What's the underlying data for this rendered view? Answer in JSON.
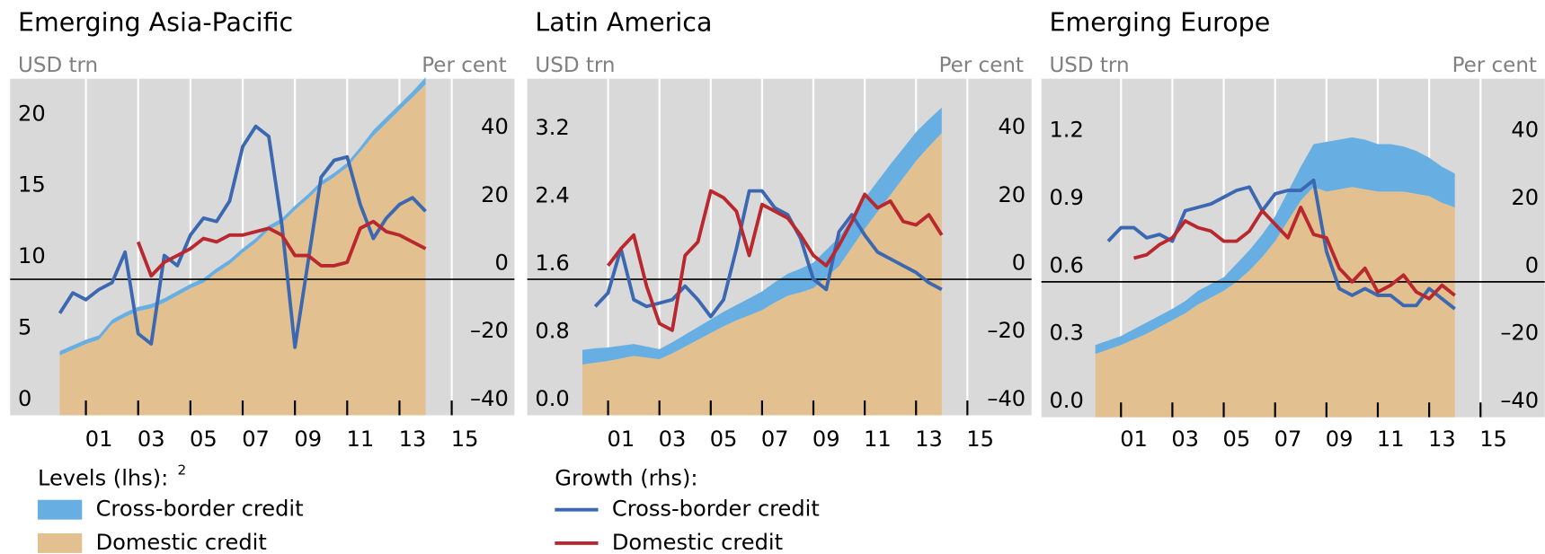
{
  "chart_data": [
    {
      "type": "combo",
      "title": "Emerging Asia-Pacific",
      "y_label": "USD trn",
      "y2_label": "Per cent",
      "x": [
        2000,
        2000.5,
        2001,
        2001.5,
        2002,
        2002.5,
        2003,
        2003.5,
        2004,
        2004.5,
        2005,
        2005.5,
        2006,
        2006.5,
        2007,
        2007.5,
        2008,
        2008.5,
        2009,
        2009.5,
        2010,
        2010.5,
        2011,
        2011.5,
        2012,
        2012.5,
        2013,
        2013.5,
        2014
      ],
      "xlim": [
        1998.1,
        2017.4
      ],
      "xticks": [
        {
          "value": 2001,
          "label": "01"
        },
        {
          "value": 2003,
          "label": "03"
        },
        {
          "value": 2005,
          "label": "05"
        },
        {
          "value": 2007,
          "label": "07"
        },
        {
          "value": 2009,
          "label": "09"
        },
        {
          "value": 2011,
          "label": "11"
        },
        {
          "value": 2013,
          "label": "13"
        },
        {
          "value": 2015,
          "label": "15"
        }
      ],
      "ylim": [
        0,
        23.6
      ],
      "yticks": [
        0,
        5,
        10,
        15,
        20
      ],
      "y2lim": [
        -40,
        59
      ],
      "y2ticks": [
        {
          "value": -40,
          "label": "–40"
        },
        {
          "value": -20,
          "label": "–20"
        },
        0,
        20,
        40
      ],
      "grid": true,
      "series": [
        {
          "name": "Domestic credit",
          "type": "area",
          "color": "#e2c08f",
          "values": [
            4.2,
            4.6,
            5.0,
            5.3,
            6.4,
            6.9,
            7.3,
            7.5,
            7.9,
            8.4,
            8.9,
            9.3,
            10.0,
            10.6,
            11.4,
            12.1,
            13.0,
            13.5,
            14.4,
            15.2,
            16.1,
            16.7,
            17.4,
            18.5,
            19.6,
            20.5,
            21.4,
            22.3,
            23.2
          ]
        },
        {
          "name": "Cross-border credit",
          "type": "band",
          "color": "#67aee3",
          "values": [
            0.3,
            0.3,
            0.3,
            0.3,
            0.3,
            0.3,
            0.3,
            0.3,
            0.3,
            0.3,
            0.3,
            0.3,
            0.3,
            0.3,
            0.3,
            0.3,
            0.3,
            0.3,
            0.3,
            0.3,
            0.3,
            0.3,
            0.3,
            0.3,
            0.4,
            0.4,
            0.4,
            0.4,
            0.5
          ]
        },
        {
          "name": "Cross-border credit",
          "type": "line",
          "axis": "y2",
          "color": "#3b68b0",
          "values": [
            -10,
            -4,
            -6,
            -3,
            -1,
            8,
            -16,
            -19,
            7,
            4,
            13,
            18,
            17,
            23,
            39,
            45,
            42,
            16,
            -20,
            5,
            30,
            35,
            36,
            22,
            12,
            18,
            22,
            24,
            20
          ]
        },
        {
          "name": "Domestic credit",
          "type": "line",
          "axis": "y2",
          "color": "#b8282e",
          "values": [
            null,
            null,
            null,
            null,
            null,
            null,
            11,
            1,
            5,
            7,
            9,
            12,
            11,
            13,
            13,
            14,
            15,
            13,
            7,
            7,
            4,
            4,
            5,
            15,
            17,
            14,
            13,
            11,
            9
          ]
        }
      ]
    },
    {
      "type": "combo",
      "title": "Latin America",
      "y_label": "USD trn",
      "y2_label": "Per cent",
      "x": [
        2000,
        2000.5,
        2001,
        2001.5,
        2002,
        2002.5,
        2003,
        2003.5,
        2004,
        2004.5,
        2005,
        2005.5,
        2006,
        2006.5,
        2007,
        2007.5,
        2008,
        2008.5,
        2009,
        2009.5,
        2010,
        2010.5,
        2011,
        2011.5,
        2012,
        2012.5,
        2013,
        2013.5,
        2014
      ],
      "xlim": [
        1997.85,
        2017.5
      ],
      "xticks": [
        {
          "value": 2001,
          "label": "01"
        },
        {
          "value": 2003,
          "label": "03"
        },
        {
          "value": 2005,
          "label": "05"
        },
        {
          "value": 2007,
          "label": "07"
        },
        {
          "value": 2009,
          "label": "09"
        },
        {
          "value": 2011,
          "label": "11"
        },
        {
          "value": 2013,
          "label": "13"
        },
        {
          "value": 2015,
          "label": "15"
        }
      ],
      "ylim": [
        0,
        3.97
      ],
      "yticks": [
        {
          "value": 0,
          "label": "0.0"
        },
        0.8,
        1.6,
        2.4,
        3.2
      ],
      "y2lim": [
        -40,
        59
      ],
      "y2ticks": [
        {
          "value": -40,
          "label": "–40"
        },
        {
          "value": -20,
          "label": "–20"
        },
        0,
        20,
        40
      ],
      "grid": true,
      "series": [
        {
          "name": "Domestic credit",
          "type": "area",
          "color": "#e2c08f",
          "values": [
            0.6,
            0.62,
            0.64,
            0.67,
            0.7,
            0.68,
            0.66,
            0.73,
            0.81,
            0.89,
            0.97,
            1.05,
            1.12,
            1.18,
            1.24,
            1.33,
            1.41,
            1.45,
            1.5,
            1.63,
            1.76,
            1.98,
            2.2,
            2.4,
            2.6,
            2.8,
            3.0,
            3.17,
            3.33
          ]
        },
        {
          "name": "Cross-border credit",
          "type": "band",
          "color": "#67aee3",
          "values": [
            0.17,
            0.17,
            0.16,
            0.15,
            0.14,
            0.13,
            0.12,
            0.13,
            0.14,
            0.15,
            0.16,
            0.17,
            0.18,
            0.2,
            0.22,
            0.24,
            0.26,
            0.28,
            0.3,
            0.32,
            0.34,
            0.35,
            0.36,
            0.36,
            0.36,
            0.35,
            0.34,
            0.32,
            0.3
          ]
        },
        {
          "name": "Cross-border credit",
          "type": "line",
          "axis": "y2",
          "color": "#3b68b0",
          "values": [
            null,
            -8,
            -4,
            9,
            -6,
            -8,
            -7,
            -6,
            -2,
            -6,
            -11,
            -6,
            9,
            26,
            26,
            21,
            19,
            12,
            0,
            -3,
            14,
            19,
            13,
            8,
            6,
            4,
            2,
            -1,
            -3
          ]
        },
        {
          "name": "Domestic credit",
          "type": "line",
          "axis": "y2",
          "color": "#b8282e",
          "values": [
            null,
            null,
            4,
            9,
            13,
            -2,
            -13,
            -15,
            7,
            11,
            26,
            24,
            20,
            7,
            22,
            20,
            18,
            13,
            7,
            4,
            10,
            17,
            25,
            21,
            23,
            17,
            16,
            19,
            13
          ]
        }
      ]
    },
    {
      "type": "combo",
      "title": "Emerging Europe",
      "y_label": "USD trn",
      "y2_label": "Per cent",
      "x": [
        2000,
        2000.5,
        2001,
        2001.5,
        2002,
        2002.5,
        2003,
        2003.5,
        2004,
        2004.5,
        2005,
        2005.5,
        2006,
        2006.5,
        2007,
        2007.5,
        2008,
        2008.5,
        2009,
        2009.5,
        2010,
        2010.5,
        2011,
        2011.5,
        2012,
        2012.5,
        2013,
        2013.5,
        2014
      ],
      "xlim": [
        1997.9,
        2017.5
      ],
      "xticks": [
        {
          "value": 2001,
          "label": "01"
        },
        {
          "value": 2003,
          "label": "03"
        },
        {
          "value": 2005,
          "label": "05"
        },
        {
          "value": 2007,
          "label": "07"
        },
        {
          "value": 2009,
          "label": "09"
        },
        {
          "value": 2011,
          "label": "11"
        },
        {
          "value": 2013,
          "label": "13"
        },
        {
          "value": 2015,
          "label": "15"
        }
      ],
      "ylim": [
        0,
        1.5
      ],
      "yticks": [
        {
          "value": 0,
          "label": "0.0"
        },
        0.3,
        0.6,
        0.9,
        1.2
      ],
      "y2lim": [
        -40,
        60
      ],
      "y2ticks": [
        {
          "value": -40,
          "label": "–40"
        },
        {
          "value": -20,
          "label": "–20"
        },
        0,
        20,
        40
      ],
      "grid": true,
      "series": [
        {
          "name": "Domestic credit",
          "type": "area",
          "color": "#e2c08f",
          "values": [
            0.28,
            0.3,
            0.32,
            0.345,
            0.37,
            0.4,
            0.43,
            0.46,
            0.5,
            0.53,
            0.56,
            0.6,
            0.65,
            0.71,
            0.78,
            0.87,
            0.96,
            1.02,
            1.0,
            1.01,
            1.02,
            1.01,
            1.0,
            1.0,
            1.0,
            0.99,
            0.98,
            0.95,
            0.93
          ]
        },
        {
          "name": "Cross-border credit",
          "type": "band",
          "color": "#67aee3",
          "values": [
            0.04,
            0.04,
            0.04,
            0.045,
            0.05,
            0.05,
            0.05,
            0.055,
            0.06,
            0.06,
            0.06,
            0.08,
            0.09,
            0.1,
            0.11,
            0.13,
            0.15,
            0.19,
            0.22,
            0.22,
            0.22,
            0.22,
            0.21,
            0.21,
            0.2,
            0.19,
            0.17,
            0.16,
            0.15
          ]
        },
        {
          "name": "Cross-border credit",
          "type": "line",
          "axis": "y2",
          "color": "#3b68b0",
          "values": [
            null,
            12,
            16,
            16,
            13,
            14,
            12,
            21,
            22,
            23,
            25,
            27,
            28,
            21,
            26,
            27,
            27,
            30,
            9,
            -2,
            -4,
            -2,
            -4,
            -4,
            -7,
            -7,
            -2,
            -5,
            -8
          ]
        },
        {
          "name": "Domestic credit",
          "type": "line",
          "axis": "y2",
          "color": "#b8282e",
          "values": [
            null,
            null,
            null,
            7,
            8,
            11,
            13,
            18,
            16,
            15,
            12,
            12,
            15,
            21,
            17,
            13,
            22,
            14,
            13,
            4,
            0,
            4,
            -3,
            -1,
            2,
            -3,
            -5,
            -1,
            -4
          ]
        }
      ]
    }
  ],
  "legend": {
    "levels_label": "Levels (lhs):",
    "levels_note": "2",
    "growth_label": "Growth (rhs):"
  }
}
